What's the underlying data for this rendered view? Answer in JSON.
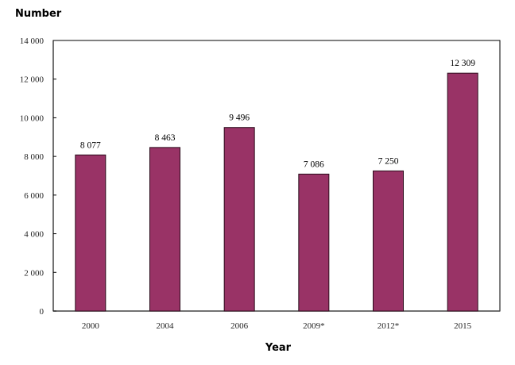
{
  "chart_data": {
    "type": "bar",
    "title": "",
    "xlabel": "Year",
    "ylabel": "Number",
    "categories": [
      "2000",
      "2004",
      "2006",
      "2009*",
      "2012*",
      "2015"
    ],
    "values": [
      8077,
      8463,
      9496,
      7086,
      7250,
      12309
    ],
    "value_labels": [
      "8 077",
      "8 463",
      "9 496",
      "7 086",
      "7 250",
      "12 309"
    ],
    "ylim": [
      0,
      14000
    ],
    "yticks": [
      0,
      2000,
      4000,
      6000,
      8000,
      10000,
      12000,
      14000
    ],
    "ytick_labels": [
      "0",
      "2 000",
      "4 000",
      "6 000",
      "8 000",
      "10 000",
      "12 000",
      "14 000"
    ],
    "grid": false,
    "legend": null,
    "bar_color": "#993366"
  },
  "axis": {
    "y_title": "Number",
    "x_title": "Year"
  }
}
